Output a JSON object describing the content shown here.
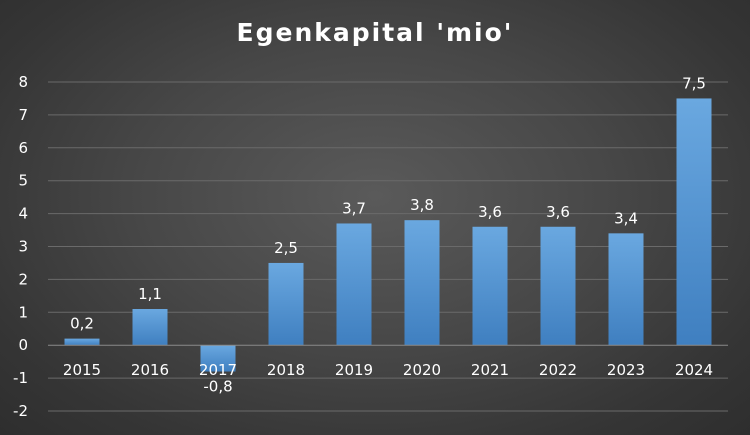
{
  "chart_data": {
    "type": "bar",
    "title": "Egenkapital 'mio'",
    "xlabel": "",
    "ylabel": "",
    "categories": [
      "2015",
      "2016",
      "2017",
      "2018",
      "2019",
      "2020",
      "2021",
      "2022",
      "2023",
      "2024"
    ],
    "values": [
      0.2,
      1.1,
      -0.8,
      2.5,
      3.7,
      3.8,
      3.6,
      3.6,
      3.4,
      7.5
    ],
    "data_labels": [
      "0,2",
      "1,1",
      "-0,8",
      "2,5",
      "3,7",
      "3,8",
      "3,6",
      "3,6",
      "3,4",
      "7,5"
    ],
    "ylim": [
      -2,
      8
    ],
    "yticks": [
      "-2",
      "-1",
      "0",
      "1",
      "2",
      "3",
      "4",
      "5",
      "6",
      "7",
      "8"
    ],
    "grid": true,
    "legend": "none",
    "bar_color": "#5b9bd5"
  }
}
